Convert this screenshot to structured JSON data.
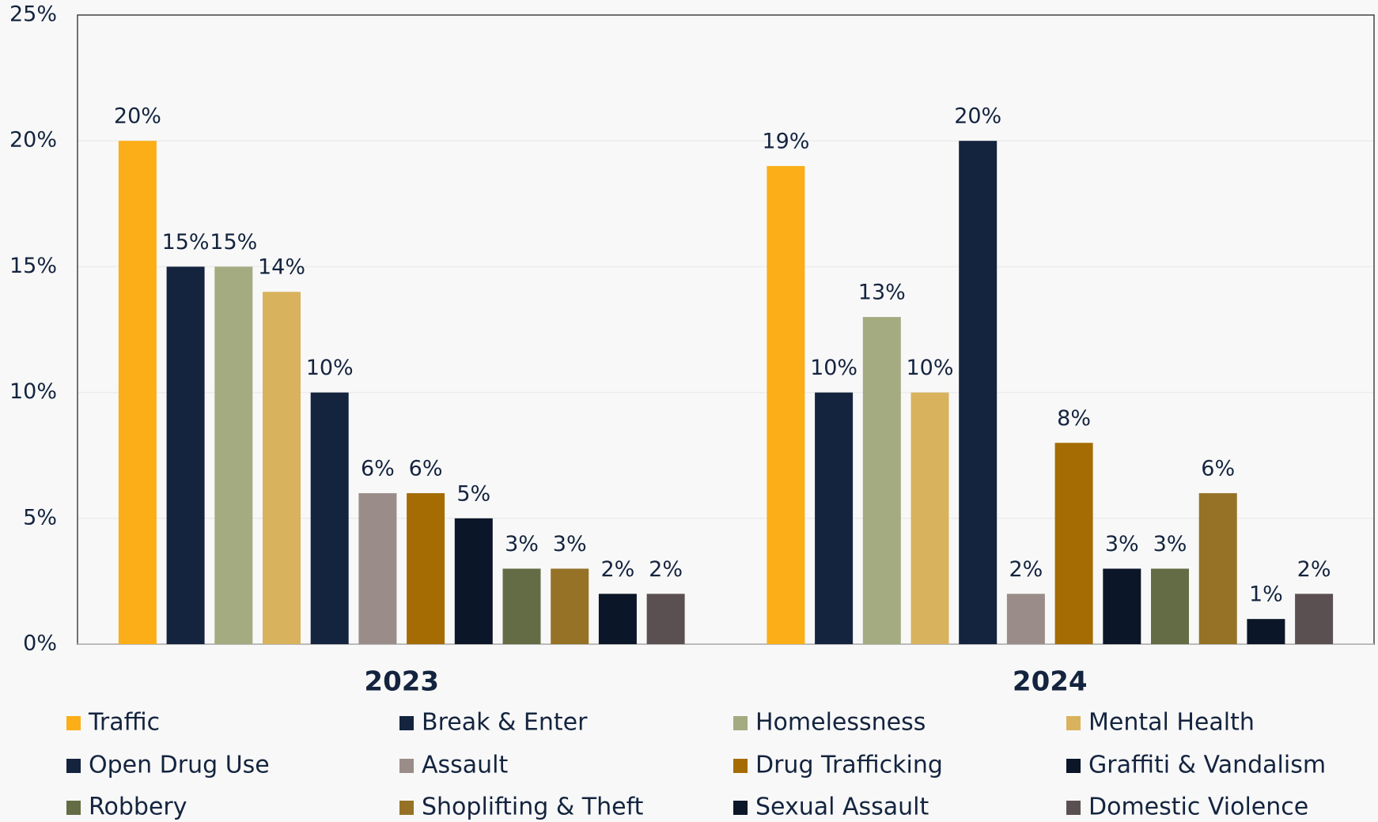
{
  "chart_data": {
    "type": "bar",
    "categories": [
      "2023",
      "2024"
    ],
    "ylim": [
      0,
      25
    ],
    "yticks": [
      {
        "value": 0,
        "label": "0%"
      },
      {
        "value": 5,
        "label": "5%"
      },
      {
        "value": 10,
        "label": "10%"
      },
      {
        "value": 15,
        "label": "15%"
      },
      {
        "value": 20,
        "label": "20%"
      },
      {
        "value": 25,
        "label": "25%"
      }
    ],
    "grid": true,
    "legend": "bottom",
    "series": [
      {
        "name": "Traffic",
        "color": "#fbae17",
        "values": [
          20,
          19
        ],
        "value_labels": [
          "20%",
          "19%"
        ]
      },
      {
        "name": "Break & Enter",
        "color": "#14243f",
        "values": [
          15,
          10
        ],
        "value_labels": [
          "15%",
          "10%"
        ]
      },
      {
        "name": "Homelessness",
        "color": "#a4ab80",
        "values": [
          15,
          13
        ],
        "value_labels": [
          "15%",
          "13%"
        ]
      },
      {
        "name": "Mental Health",
        "color": "#d9b25e",
        "values": [
          14,
          10
        ],
        "value_labels": [
          "14%",
          "10%"
        ]
      },
      {
        "name": "Open Drug Use",
        "color": "#14243f",
        "values": [
          10,
          20
        ],
        "value_labels": [
          "10%",
          "20%"
        ]
      },
      {
        "name": "Assault",
        "color": "#9a8d89",
        "values": [
          6,
          2
        ],
        "value_labels": [
          "6%",
          "2%"
        ]
      },
      {
        "name": "Drug Trafficking",
        "color": "#a46c03",
        "values": [
          6,
          8
        ],
        "value_labels": [
          "6%",
          "8%"
        ]
      },
      {
        "name": "Graffiti & Vandalism",
        "color": "#0b1628",
        "values": [
          5,
          3
        ],
        "value_labels": [
          "5%",
          "3%"
        ]
      },
      {
        "name": "Robbery",
        "color": "#646c45",
        "values": [
          3,
          3
        ],
        "value_labels": [
          "3%",
          "3%"
        ]
      },
      {
        "name": "Shoplifting & Theft",
        "color": "#957226",
        "values": [
          3,
          6
        ],
        "value_labels": [
          "3%",
          "6%"
        ]
      },
      {
        "name": "Sexual Assault",
        "color": "#0b1628",
        "values": [
          2,
          1
        ],
        "value_labels": [
          "2%",
          "1%"
        ]
      },
      {
        "name": "Domestic Violence",
        "color": "#5b5051",
        "values": [
          2,
          2
        ],
        "value_labels": [
          "2%",
          "2%"
        ]
      }
    ]
  }
}
